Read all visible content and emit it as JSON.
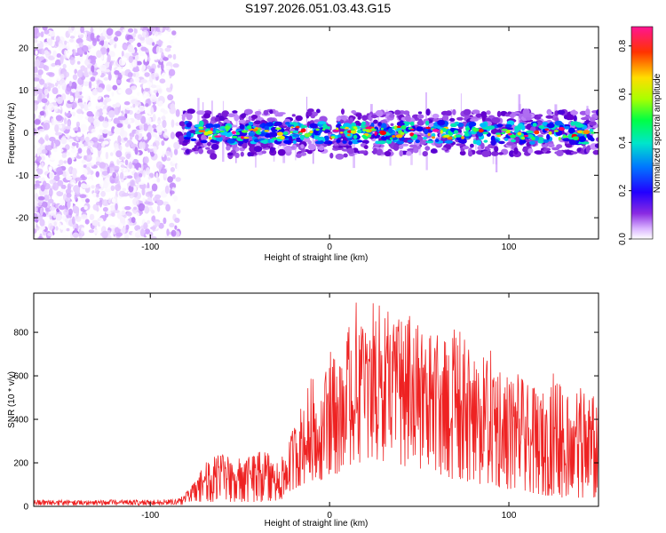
{
  "figure_title": "S197.2026.051.03.43.G15",
  "chart_data": [
    {
      "type": "heatmap",
      "title": "S197.2026.051.03.43.G15",
      "xlabel": "Height of straight line (km)",
      "ylabel": "Frequency (Hz)",
      "xlim": [
        -165,
        150
      ],
      "ylim": [
        -25,
        25
      ],
      "xticks": [
        -100,
        0,
        100
      ],
      "yticks": [
        -20,
        -10,
        0,
        10,
        20
      ],
      "grid": false,
      "colorbar": {
        "label": "Normalized spectral amplitude",
        "range": [
          0.0,
          0.88
        ],
        "ticks": [
          0.0,
          0.2,
          0.4,
          0.6,
          0.8
        ],
        "colormap": [
          "#ffffff",
          "#cc99ff",
          "#6600cc",
          "#0000ff",
          "#00ccff",
          "#00ff66",
          "#ccff00",
          "#ffcc00",
          "#ff0000",
          "#ff00aa"
        ]
      },
      "regions": [
        {
          "name": "noise",
          "x_range": [
            -165,
            -84
          ],
          "y_range": [
            -25,
            25
          ],
          "amplitude_range": [
            0.0,
            0.12
          ]
        },
        {
          "name": "signal",
          "x_range": [
            -84,
            150
          ],
          "center_frequency_hz": 0,
          "half_width_hz": 4,
          "amplitude_range": [
            0.05,
            0.88
          ]
        }
      ]
    },
    {
      "type": "line",
      "title": "",
      "xlabel": "Height of straight line (km)",
      "ylabel": "SNR (10 * v/v)",
      "xlim": [
        -165,
        150
      ],
      "ylim": [
        0,
        980
      ],
      "xticks": [
        -100,
        0,
        100
      ],
      "yticks": [
        0,
        200,
        400,
        600,
        800
      ],
      "grid": false,
      "series": [
        {
          "name": "SNR",
          "color": "#ee2222",
          "x": [
            -165,
            -140,
            -120,
            -100,
            -85,
            -78,
            -72,
            -65,
            -60,
            -55,
            -50,
            -45,
            -40,
            -35,
            -30,
            -25,
            -20,
            -15,
            -10,
            -5,
            0,
            5,
            10,
            15,
            20,
            25,
            30,
            35,
            40,
            45,
            50,
            55,
            60,
            65,
            70,
            75,
            80,
            85,
            90,
            95,
            100,
            105,
            110,
            115,
            120,
            125,
            130,
            135,
            140,
            145,
            150
          ],
          "envelope_max": [
            30,
            30,
            30,
            30,
            35,
            80,
            180,
            230,
            250,
            240,
            220,
            230,
            250,
            260,
            200,
            240,
            380,
            480,
            600,
            520,
            780,
            640,
            800,
            950,
            900,
            940,
            960,
            930,
            900,
            880,
            830,
            800,
            830,
            780,
            820,
            800,
            700,
            680,
            720,
            650,
            600,
            620,
            560,
            540,
            520,
            620,
            600,
            540,
            550,
            520,
            500
          ],
          "envelope_min": [
            5,
            5,
            5,
            5,
            5,
            10,
            20,
            20,
            30,
            20,
            20,
            20,
            20,
            20,
            20,
            40,
            80,
            100,
            120,
            120,
            150,
            150,
            180,
            200,
            200,
            220,
            200,
            200,
            180,
            180,
            160,
            150,
            150,
            140,
            120,
            120,
            100,
            100,
            100,
            80,
            80,
            80,
            60,
            60,
            50,
            50,
            40,
            40,
            40,
            40,
            40
          ]
        }
      ]
    }
  ]
}
